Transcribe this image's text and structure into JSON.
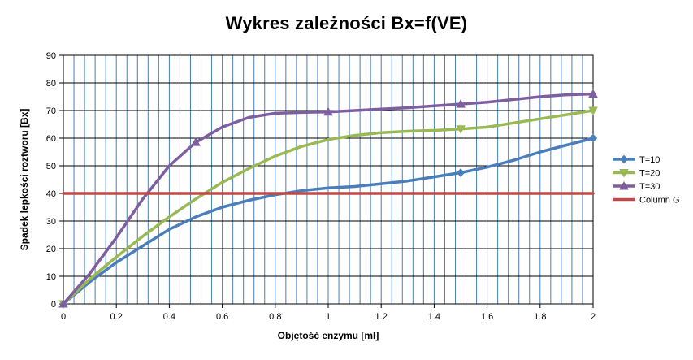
{
  "chart_data": {
    "type": "line",
    "title": "Wykres zależności Bx=f(VE)",
    "xlabel": "Objętość enzymu [ml]",
    "ylabel": "Spadek lepkości roztworu [Bx]",
    "xlim": [
      0,
      2
    ],
    "ylim": [
      0,
      90
    ],
    "x_ticks": [
      0,
      0.2,
      0.4,
      0.6,
      0.8,
      1,
      1.2,
      1.4,
      1.6,
      1.8,
      2
    ],
    "x_tick_labels": [
      "0",
      "0.2",
      "0.4",
      "0.6",
      "0.8",
      "1",
      "1.2",
      "1.4",
      "1.6",
      "1.8",
      "2"
    ],
    "y_ticks": [
      0,
      10,
      20,
      30,
      40,
      50,
      60,
      70,
      80,
      90
    ],
    "y_tick_labels": [
      "0",
      "10",
      "20",
      "30",
      "40",
      "50",
      "60",
      "70",
      "80",
      "90"
    ],
    "grid": true,
    "legend_position": "right",
    "series": [
      {
        "name": "T=10",
        "color": "#4a7ebb",
        "marker": "diamond",
        "points": [
          [
            0,
            0
          ],
          [
            0.1,
            8
          ],
          [
            0.2,
            15
          ],
          [
            0.3,
            21
          ],
          [
            0.4,
            27
          ],
          [
            0.5,
            31.5
          ],
          [
            0.6,
            35
          ],
          [
            0.7,
            37.5
          ],
          [
            0.8,
            39.5
          ],
          [
            0.9,
            41
          ],
          [
            1,
            42
          ],
          [
            1.1,
            42.5
          ],
          [
            1.2,
            43.5
          ],
          [
            1.3,
            44.5
          ],
          [
            1.4,
            46
          ],
          [
            1.5,
            47.5
          ],
          [
            1.6,
            49.5
          ],
          [
            1.7,
            52
          ],
          [
            1.8,
            55
          ],
          [
            1.9,
            57.5
          ],
          [
            2,
            60
          ]
        ],
        "marker_x": [
          0,
          1.5,
          2
        ]
      },
      {
        "name": "T=20",
        "color": "#98b954",
        "marker": "triangle-down",
        "points": [
          [
            0,
            0
          ],
          [
            0.1,
            9
          ],
          [
            0.2,
            17
          ],
          [
            0.3,
            24.5
          ],
          [
            0.4,
            31.5
          ],
          [
            0.5,
            38
          ],
          [
            0.6,
            44
          ],
          [
            0.7,
            49
          ],
          [
            0.8,
            53.5
          ],
          [
            0.9,
            57
          ],
          [
            1,
            59.5
          ],
          [
            1.1,
            61
          ],
          [
            1.2,
            62
          ],
          [
            1.3,
            62.5
          ],
          [
            1.4,
            62.8
          ],
          [
            1.5,
            63.3
          ],
          [
            1.6,
            64
          ],
          [
            1.7,
            65.5
          ],
          [
            1.8,
            67
          ],
          [
            1.9,
            68.5
          ],
          [
            2,
            70
          ]
        ],
        "marker_x": [
          0,
          1.5,
          2
        ]
      },
      {
        "name": "T=30",
        "color": "#7d5fa0",
        "marker": "triangle-up",
        "points": [
          [
            0,
            0
          ],
          [
            0.1,
            11
          ],
          [
            0.2,
            24
          ],
          [
            0.3,
            38
          ],
          [
            0.4,
            50
          ],
          [
            0.5,
            58.5
          ],
          [
            0.6,
            64
          ],
          [
            0.7,
            67.5
          ],
          [
            0.8,
            69
          ],
          [
            0.9,
            69.3
          ],
          [
            1,
            69.5
          ],
          [
            1.1,
            70
          ],
          [
            1.2,
            70.5
          ],
          [
            1.3,
            71
          ],
          [
            1.4,
            71.7
          ],
          [
            1.5,
            72.3
          ],
          [
            1.6,
            73
          ],
          [
            1.7,
            74
          ],
          [
            1.8,
            75
          ],
          [
            1.9,
            75.7
          ],
          [
            2,
            76
          ]
        ],
        "marker_x": [
          0,
          0.5,
          1,
          1.5,
          2
        ]
      },
      {
        "name": "Column G",
        "color": "#be4b48",
        "marker": "none",
        "points": [
          [
            0,
            40
          ],
          [
            2,
            40
          ]
        ],
        "marker_x": []
      }
    ]
  }
}
